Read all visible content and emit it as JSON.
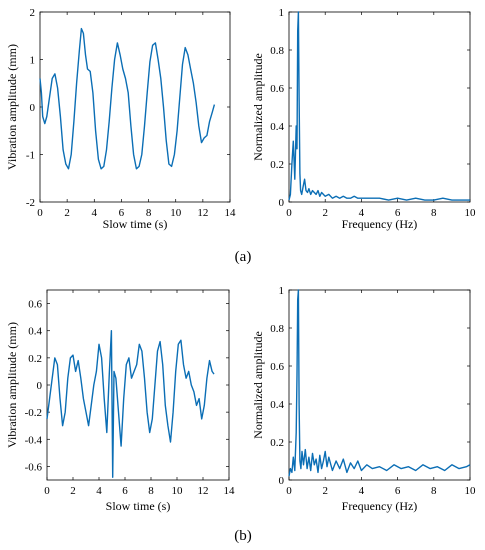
{
  "captions": [
    "(a)",
    "(b)"
  ],
  "chart_data": [
    {
      "type": "line",
      "panel": "a-time",
      "xlabel": "Slow time (s)",
      "ylabel": "Vibration amplitude (mm)",
      "xlim": [
        0,
        14
      ],
      "ylim": [
        -2,
        2
      ],
      "xticks": [
        0,
        2,
        4,
        6,
        8,
        10,
        12,
        14
      ],
      "yticks": [
        -2,
        -1,
        0,
        1,
        2
      ],
      "grid": false,
      "series": [
        {
          "color": "#0b6eb5",
          "x": [
            0,
            0.1,
            0.2,
            0.35,
            0.5,
            0.7,
            0.9,
            1.1,
            1.3,
            1.5,
            1.7,
            1.9,
            2.1,
            2.3,
            2.5,
            2.7,
            2.9,
            3.05,
            3.2,
            3.35,
            3.5,
            3.7,
            3.9,
            4.1,
            4.3,
            4.5,
            4.7,
            4.9,
            5.1,
            5.3,
            5.5,
            5.7,
            5.9,
            6.1,
            6.3,
            6.5,
            6.7,
            6.9,
            7.1,
            7.3,
            7.5,
            7.7,
            7.9,
            8.1,
            8.3,
            8.5,
            8.7,
            8.9,
            9.1,
            9.3,
            9.5,
            9.7,
            9.9,
            10.1,
            10.3,
            10.5,
            10.7,
            10.9,
            11.1,
            11.3,
            11.5,
            11.7,
            11.9,
            12.1,
            12.3,
            12.5,
            12.7,
            12.85
          ],
          "y": [
            0.6,
            0.3,
            -0.2,
            -0.35,
            -0.2,
            0.2,
            0.6,
            0.7,
            0.4,
            -0.2,
            -0.9,
            -1.2,
            -1.3,
            -1.0,
            -0.3,
            0.5,
            1.2,
            1.65,
            1.55,
            1.1,
            0.8,
            0.75,
            0.3,
            -0.5,
            -1.1,
            -1.3,
            -1.25,
            -0.9,
            -0.3,
            0.4,
            1.0,
            1.35,
            1.1,
            0.8,
            0.6,
            0.3,
            -0.4,
            -1.0,
            -1.3,
            -1.25,
            -1.0,
            -0.4,
            0.3,
            0.95,
            1.3,
            1.35,
            1.0,
            0.6,
            0.0,
            -0.7,
            -1.2,
            -1.25,
            -1.0,
            -0.5,
            0.2,
            0.9,
            1.25,
            1.1,
            0.8,
            0.5,
            0.1,
            -0.4,
            -0.75,
            -0.65,
            -0.6,
            -0.3,
            -0.1,
            0.05
          ]
        }
      ]
    },
    {
      "type": "line",
      "panel": "a-spectrum",
      "xlabel": "Frequency (Hz)",
      "ylabel": "Normalized amplitude",
      "xlim": [
        0,
        10
      ],
      "ylim": [
        0,
        1
      ],
      "xticks": [
        0,
        2,
        4,
        6,
        8,
        10
      ],
      "yticks": [
        0,
        0.2,
        0.4,
        0.6,
        0.8,
        1
      ],
      "grid": false,
      "series": [
        {
          "color": "#0b6eb5",
          "x": [
            0,
            0.08,
            0.16,
            0.24,
            0.32,
            0.4,
            0.44,
            0.48,
            0.52,
            0.56,
            0.6,
            0.64,
            0.7,
            0.78,
            0.86,
            0.94,
            1.02,
            1.1,
            1.2,
            1.3,
            1.4,
            1.5,
            1.6,
            1.7,
            1.8,
            1.9,
            2.0,
            2.2,
            2.4,
            2.6,
            2.8,
            3.0,
            3.2,
            3.4,
            3.6,
            3.8,
            4.0,
            4.5,
            5.0,
            5.5,
            6.0,
            6.5,
            7.0,
            7.5,
            8.0,
            8.5,
            9.0,
            9.5,
            10.0
          ],
          "y": [
            0.01,
            0.04,
            0.2,
            0.32,
            0.12,
            0.4,
            0.28,
            0.9,
            1.0,
            0.55,
            0.15,
            0.06,
            0.04,
            0.08,
            0.12,
            0.06,
            0.05,
            0.07,
            0.04,
            0.06,
            0.05,
            0.04,
            0.06,
            0.03,
            0.05,
            0.04,
            0.03,
            0.04,
            0.02,
            0.03,
            0.02,
            0.03,
            0.02,
            0.02,
            0.03,
            0.02,
            0.02,
            0.02,
            0.02,
            0.01,
            0.02,
            0.01,
            0.02,
            0.01,
            0.01,
            0.02,
            0.01,
            0.01,
            0.01
          ]
        }
      ]
    },
    {
      "type": "line",
      "panel": "b-time",
      "xlabel": "Slow time (s)",
      "ylabel": "Vibration amplitude (mm)",
      "xlim": [
        0,
        14
      ],
      "ylim": [
        -0.7,
        0.7
      ],
      "xticks": [
        0,
        2,
        4,
        6,
        8,
        10,
        12,
        14
      ],
      "yticks": [
        -0.6,
        -0.4,
        -0.2,
        0,
        0.2,
        0.4,
        0.6
      ],
      "grid": false,
      "series": [
        {
          "color": "#0b6eb5",
          "x": [
            0,
            0.2,
            0.4,
            0.6,
            0.8,
            1.0,
            1.2,
            1.4,
            1.6,
            1.8,
            2.0,
            2.2,
            2.4,
            2.6,
            2.8,
            3.0,
            3.2,
            3.4,
            3.6,
            3.8,
            4.0,
            4.2,
            4.4,
            4.6,
            4.8,
            4.95,
            5.05,
            5.15,
            5.3,
            5.5,
            5.7,
            5.9,
            6.1,
            6.3,
            6.5,
            6.7,
            6.9,
            7.1,
            7.3,
            7.5,
            7.7,
            7.9,
            8.1,
            8.3,
            8.5,
            8.7,
            8.9,
            9.1,
            9.3,
            9.5,
            9.7,
            9.9,
            10.1,
            10.3,
            10.5,
            10.7,
            10.9,
            11.1,
            11.3,
            11.5,
            11.7,
            11.9,
            12.1,
            12.3,
            12.5,
            12.7,
            12.85
          ],
          "y": [
            -0.25,
            -0.1,
            0.05,
            0.2,
            0.15,
            -0.1,
            -0.3,
            -0.2,
            0.05,
            0.2,
            0.22,
            0.1,
            0.18,
            0.05,
            -0.1,
            -0.2,
            -0.3,
            -0.15,
            0.0,
            0.1,
            0.3,
            0.2,
            -0.1,
            -0.35,
            0.1,
            0.4,
            -0.68,
            0.1,
            0.05,
            -0.2,
            -0.45,
            -0.1,
            0.15,
            0.2,
            0.05,
            0.1,
            0.15,
            0.3,
            0.25,
            0.05,
            -0.2,
            -0.35,
            -0.25,
            0.0,
            0.25,
            0.32,
            0.15,
            -0.15,
            -0.3,
            -0.42,
            -0.2,
            0.1,
            0.3,
            0.33,
            0.15,
            0.05,
            0.1,
            0.0,
            -0.05,
            -0.15,
            -0.1,
            -0.25,
            -0.15,
            0.05,
            0.18,
            0.1,
            0.08
          ]
        }
      ]
    },
    {
      "type": "line",
      "panel": "b-spectrum",
      "xlabel": "Frequency (Hz)",
      "ylabel": "Normalized amplitude",
      "xlim": [
        0,
        10
      ],
      "ylim": [
        0,
        1
      ],
      "xticks": [
        0,
        2,
        4,
        6,
        8,
        10
      ],
      "yticks": [
        0,
        0.2,
        0.4,
        0.6,
        0.8,
        1
      ],
      "grid": false,
      "series": [
        {
          "color": "#0b6eb5",
          "x": [
            0,
            0.08,
            0.16,
            0.24,
            0.32,
            0.4,
            0.44,
            0.48,
            0.52,
            0.56,
            0.6,
            0.66,
            0.72,
            0.8,
            0.9,
            1.0,
            1.1,
            1.2,
            1.3,
            1.4,
            1.5,
            1.6,
            1.7,
            1.8,
            1.9,
            2.0,
            2.1,
            2.2,
            2.4,
            2.6,
            2.8,
            3.0,
            3.2,
            3.4,
            3.6,
            3.8,
            4.0,
            4.3,
            4.6,
            5.0,
            5.4,
            5.8,
            6.2,
            6.6,
            7.0,
            7.4,
            7.8,
            8.2,
            8.6,
            9.0,
            9.4,
            9.8,
            10.0
          ],
          "y": [
            0.02,
            0.06,
            0.04,
            0.12,
            0.05,
            0.25,
            0.55,
            0.95,
            1.0,
            0.4,
            0.1,
            0.06,
            0.15,
            0.08,
            0.16,
            0.06,
            0.12,
            0.05,
            0.14,
            0.08,
            0.11,
            0.04,
            0.13,
            0.06,
            0.1,
            0.15,
            0.07,
            0.12,
            0.05,
            0.1,
            0.06,
            0.11,
            0.04,
            0.09,
            0.06,
            0.1,
            0.05,
            0.08,
            0.06,
            0.07,
            0.05,
            0.08,
            0.06,
            0.07,
            0.05,
            0.08,
            0.06,
            0.07,
            0.05,
            0.08,
            0.06,
            0.07,
            0.08
          ]
        }
      ]
    }
  ]
}
